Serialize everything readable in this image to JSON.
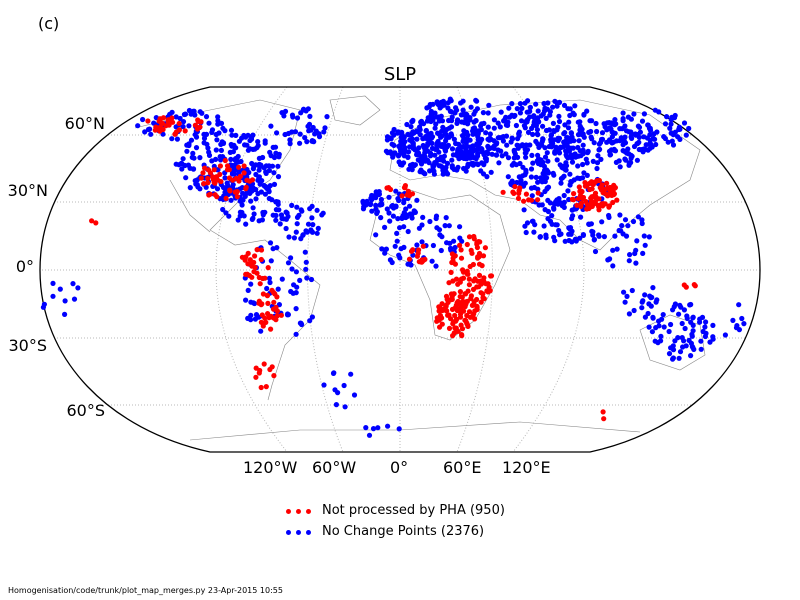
{
  "panel_label": "(c)",
  "title": "SLP",
  "lat_labels": [
    "60°N",
    "30°N",
    "0°",
    "30°S",
    "60°S"
  ],
  "lon_labels": [
    "120°W",
    "60°W",
    "0°",
    "60°E",
    "120°E"
  ],
  "legend": [
    {
      "label": "Not processed by PHA (950)",
      "color": "#ff0000"
    },
    {
      "label": "No Change Points (2376)",
      "color": "#0000ff"
    }
  ],
  "footer": "Homogenisation/code/trunk/plot_map_merges.py   23-Apr-2015 10:55",
  "chart_data": {
    "type": "scatter",
    "title": "SLP",
    "projection": "Robinson",
    "lat_ticks": [
      60,
      30,
      0,
      -30,
      -60
    ],
    "lon_ticks": [
      -120,
      -60,
      0,
      60,
      120
    ],
    "grid": true,
    "series": [
      {
        "name": "Not processed by PHA (950)",
        "color": "#ff0000",
        "count": 950
      },
      {
        "name": "No Change Points (2376)",
        "color": "#0000ff",
        "count": 2376
      }
    ]
  }
}
